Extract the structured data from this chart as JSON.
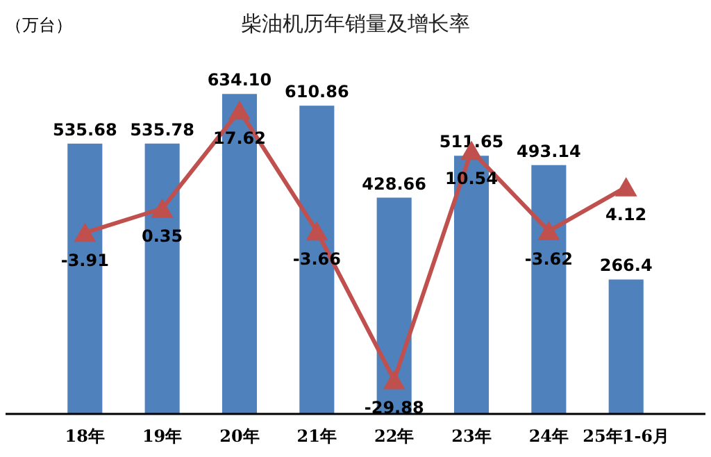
{
  "chart_data": {
    "type": "bar",
    "title": "柴油机历年销量及增长率",
    "annotations": [
      "（万台）"
    ],
    "categories": [
      "18年",
      "19年",
      "20年",
      "21年",
      "22年",
      "23年",
      "24年",
      "25年1-6月"
    ],
    "series": [
      {
        "color": "#4f81bd",
        "values": [
          535.68,
          535.78,
          634.1,
          610.86,
          428.66,
          511.65,
          493.14,
          266.4
        ],
        "value_labels": [
          "535.68",
          "535.78",
          "634.10",
          "610.86",
          "428.66",
          "511.65",
          "493.14",
          "266.4"
        ]
      },
      {
        "type": "line",
        "axis": "y2",
        "color": "#c0504d",
        "marker": "triangle",
        "values": [
          -3.91,
          0.35,
          17.62,
          -3.66,
          -29.88,
          10.54,
          -3.62,
          4.12
        ]
      }
    ],
    "data_labels": true,
    "grid": false
  }
}
